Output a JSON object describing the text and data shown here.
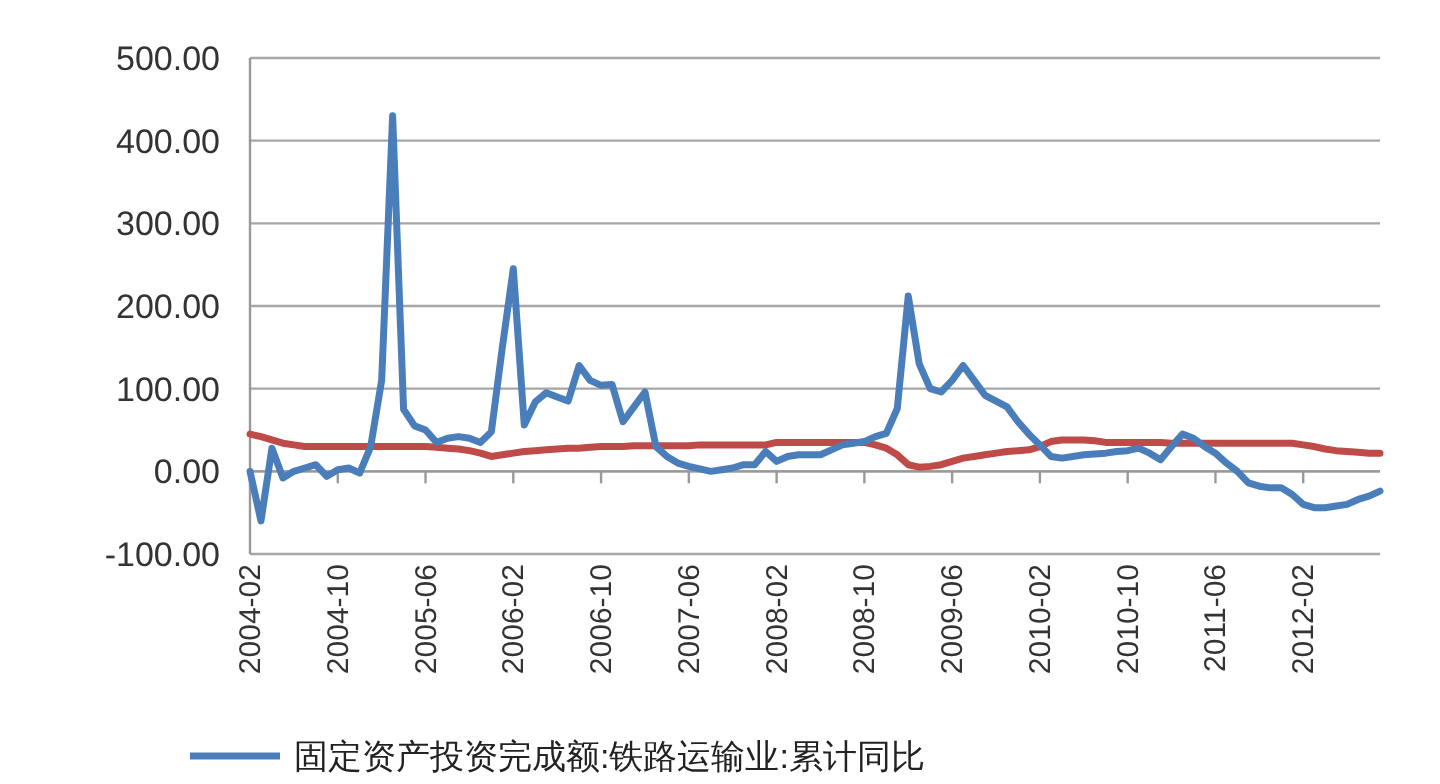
{
  "chart_data": {
    "type": "line",
    "legend": "bottom",
    "grid": "y",
    "categories": [
      "2004-02",
      null,
      null,
      null,
      null,
      null,
      null,
      null,
      "2004-10",
      null,
      null,
      null,
      null,
      null,
      null,
      null,
      "2005-06",
      null,
      null,
      null,
      null,
      null,
      null,
      null,
      "2006-02",
      null,
      null,
      null,
      null,
      null,
      null,
      null,
      "2006-10",
      null,
      null,
      null,
      null,
      null,
      null,
      null,
      "2007-06",
      null,
      null,
      null,
      null,
      null,
      null,
      null,
      "2008-02",
      null,
      null,
      null,
      null,
      null,
      null,
      null,
      "2008-10",
      null,
      null,
      null,
      null,
      null,
      null,
      null,
      "2009-06",
      null,
      null,
      null,
      null,
      null,
      null,
      null,
      "2010-02",
      null,
      null,
      null,
      null,
      null,
      null,
      null,
      "2010-10",
      null,
      null,
      null,
      null,
      null,
      null,
      null,
      "2011-06",
      null,
      null,
      null,
      null,
      null,
      null,
      null,
      "2012-02",
      null,
      null,
      null,
      null,
      null,
      null,
      null
    ],
    "ylim": [
      -100,
      500
    ],
    "yticks": [
      {
        "value": -100,
        "label": "-100.00"
      },
      {
        "value": 0,
        "label": "0.00"
      },
      {
        "value": 100,
        "label": "100.00"
      },
      {
        "value": 200,
        "label": "200.00"
      },
      {
        "value": 300,
        "label": "300.00"
      },
      {
        "value": 400,
        "label": "400.00"
      },
      {
        "value": 500,
        "label": "500.00"
      }
    ],
    "series": [
      {
        "name": "固定资产投资完成额:铁路运输业:累计同比",
        "color": "#4a7ebb",
        "values": [
          0,
          -60,
          28,
          -8,
          0,
          4,
          8,
          -6,
          2,
          4,
          -2,
          30,
          110,
          430,
          75,
          55,
          50,
          35,
          40,
          42,
          40,
          35,
          48,
          150,
          245,
          56,
          84,
          95,
          90,
          85,
          128,
          110,
          104,
          105,
          60,
          78,
          96,
          30,
          18,
          10,
          6,
          3,
          0,
          2,
          4,
          8,
          8,
          24,
          12,
          18,
          20,
          20,
          20,
          26,
          32,
          34,
          36,
          42,
          46,
          76,
          212,
          130,
          100,
          96,
          110,
          128,
          110,
          92,
          85,
          78,
          60,
          45,
          32,
          18,
          16,
          18,
          20,
          21,
          22,
          24,
          25,
          28,
          22,
          14,
          30,
          45,
          40,
          30,
          22,
          10,
          0,
          -14,
          -18,
          -20,
          -20,
          -28,
          -40,
          -44,
          -44,
          -42,
          -40,
          -34,
          -30,
          -24
        ]
      },
      {
        "color": "#be4b48",
        "values": [
          45,
          42,
          38,
          34,
          32,
          30,
          30,
          30,
          30,
          30,
          30,
          30,
          30,
          30,
          30,
          30,
          30,
          29,
          28,
          27,
          25,
          22,
          18,
          20,
          22,
          24,
          25,
          26,
          27,
          28,
          28,
          29,
          30,
          30,
          30,
          31,
          31,
          31,
          31,
          31,
          31,
          32,
          32,
          32,
          32,
          32,
          32,
          32,
          35,
          35,
          35,
          35,
          35,
          35,
          35,
          35,
          35,
          32,
          28,
          20,
          8,
          5,
          6,
          8,
          12,
          16,
          18,
          20,
          22,
          24,
          25,
          26,
          30,
          36,
          38,
          38,
          38,
          37,
          35,
          35,
          35,
          35,
          35,
          35,
          34,
          34,
          34,
          34,
          34,
          34,
          34,
          34,
          34,
          34,
          34,
          34,
          32,
          30,
          27,
          25,
          24,
          23,
          22,
          22
        ]
      }
    ]
  }
}
